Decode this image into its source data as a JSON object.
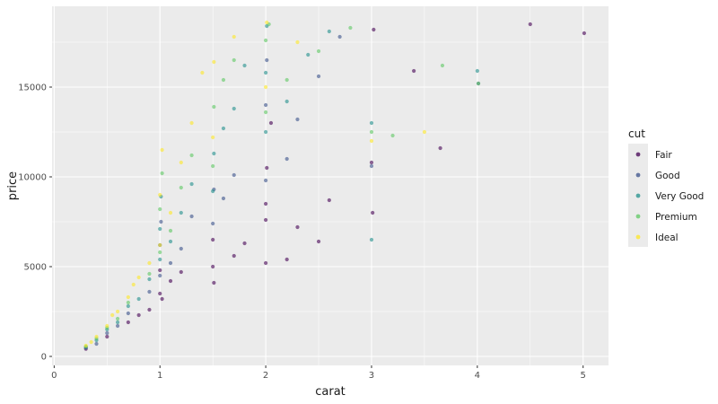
{
  "chart_data": {
    "type": "scatter",
    "title": "",
    "xlabel": "carat",
    "ylabel": "price",
    "xlim": [
      -0.02,
      5.24
    ],
    "ylim": [
      -500,
      19500
    ],
    "x_ticks": [
      0,
      1,
      2,
      3,
      4,
      5
    ],
    "x_tick_labels": [
      "0",
      "1",
      "2",
      "3",
      "4",
      "5"
    ],
    "y_ticks": [
      0,
      5000,
      10000,
      15000
    ],
    "y_tick_labels": [
      "0",
      "5000",
      "10000",
      "15000"
    ],
    "grid": true,
    "background": "#ebebeb",
    "grid_color": "#ffffff",
    "legend": {
      "title": "cut",
      "position": "right",
      "entries": [
        "Fair",
        "Good",
        "Very Good",
        "Premium",
        "Ideal"
      ]
    },
    "series": [
      {
        "name": "Fair",
        "color": "#440154",
        "points": [
          [
            0.3,
            420
          ],
          [
            0.5,
            1100
          ],
          [
            0.7,
            1900
          ],
          [
            0.8,
            2300
          ],
          [
            0.9,
            2600
          ],
          [
            1.0,
            3500
          ],
          [
            1.0,
            4800
          ],
          [
            1.02,
            3200
          ],
          [
            1.1,
            4200
          ],
          [
            1.2,
            4700
          ],
          [
            1.5,
            5000
          ],
          [
            1.5,
            6500
          ],
          [
            1.51,
            4100
          ],
          [
            1.7,
            5600
          ],
          [
            1.8,
            6300
          ],
          [
            2.0,
            5200
          ],
          [
            2.0,
            7600
          ],
          [
            2.0,
            8500
          ],
          [
            2.01,
            10500
          ],
          [
            2.05,
            13000
          ],
          [
            2.2,
            5400
          ],
          [
            2.3,
            7200
          ],
          [
            2.5,
            6400
          ],
          [
            2.6,
            8700
          ],
          [
            3.0,
            10800
          ],
          [
            3.01,
            8000
          ],
          [
            3.02,
            18200
          ],
          [
            3.4,
            15900
          ],
          [
            3.65,
            11600
          ],
          [
            4.5,
            18500
          ],
          [
            5.01,
            18000
          ]
        ]
      },
      {
        "name": "Good",
        "color": "#3b528b",
        "points": [
          [
            0.3,
            480
          ],
          [
            0.4,
            700
          ],
          [
            0.5,
            1300
          ],
          [
            0.6,
            1700
          ],
          [
            0.7,
            2400
          ],
          [
            0.9,
            3600
          ],
          [
            1.0,
            4500
          ],
          [
            1.0,
            6200
          ],
          [
            1.01,
            7500
          ],
          [
            1.1,
            5200
          ],
          [
            1.2,
            6000
          ],
          [
            1.3,
            7800
          ],
          [
            1.5,
            7400
          ],
          [
            1.51,
            9300
          ],
          [
            1.6,
            8800
          ],
          [
            1.7,
            10100
          ],
          [
            2.0,
            9800
          ],
          [
            2.0,
            14000
          ],
          [
            2.01,
            16500
          ],
          [
            2.2,
            11000
          ],
          [
            2.3,
            13200
          ],
          [
            2.5,
            15600
          ],
          [
            2.7,
            17800
          ],
          [
            3.0,
            10600
          ],
          [
            4.01,
            15200
          ]
        ]
      },
      {
        "name": "Very Good",
        "color": "#21908c",
        "points": [
          [
            0.3,
            520
          ],
          [
            0.4,
            900
          ],
          [
            0.5,
            1500
          ],
          [
            0.6,
            1900
          ],
          [
            0.7,
            2800
          ],
          [
            0.8,
            3200
          ],
          [
            0.9,
            4300
          ],
          [
            1.0,
            5400
          ],
          [
            1.0,
            7100
          ],
          [
            1.01,
            8900
          ],
          [
            1.1,
            6400
          ],
          [
            1.2,
            8000
          ],
          [
            1.3,
            9600
          ],
          [
            1.5,
            9200
          ],
          [
            1.51,
            11300
          ],
          [
            1.6,
            12700
          ],
          [
            1.7,
            13800
          ],
          [
            1.8,
            16200
          ],
          [
            2.0,
            12500
          ],
          [
            2.0,
            15800
          ],
          [
            2.01,
            18400
          ],
          [
            2.2,
            14200
          ],
          [
            2.4,
            16800
          ],
          [
            2.6,
            18100
          ],
          [
            3.0,
            6500
          ],
          [
            3.0,
            13000
          ],
          [
            4.0,
            15900
          ]
        ]
      },
      {
        "name": "Premium",
        "color": "#5dc863",
        "points": [
          [
            0.3,
            560
          ],
          [
            0.4,
            1000
          ],
          [
            0.5,
            1600
          ],
          [
            0.6,
            2100
          ],
          [
            0.7,
            3000
          ],
          [
            0.9,
            4600
          ],
          [
            1.0,
            5800
          ],
          [
            1.0,
            8200
          ],
          [
            1.02,
            10200
          ],
          [
            1.1,
            7000
          ],
          [
            1.2,
            9400
          ],
          [
            1.3,
            11200
          ],
          [
            1.5,
            10600
          ],
          [
            1.51,
            13900
          ],
          [
            1.6,
            15400
          ],
          [
            1.7,
            16500
          ],
          [
            2.0,
            13600
          ],
          [
            2.0,
            17600
          ],
          [
            2.03,
            18500
          ],
          [
            2.2,
            15400
          ],
          [
            2.5,
            17000
          ],
          [
            2.8,
            18300
          ],
          [
            3.0,
            12500
          ],
          [
            3.2,
            12300
          ],
          [
            3.67,
            16200
          ],
          [
            4.01,
            15200
          ]
        ]
      },
      {
        "name": "Ideal",
        "color": "#fde725",
        "points": [
          [
            0.3,
            600
          ],
          [
            0.35,
            800
          ],
          [
            0.4,
            1100
          ],
          [
            0.5,
            1700
          ],
          [
            0.55,
            2300
          ],
          [
            0.6,
            2500
          ],
          [
            0.7,
            3300
          ],
          [
            0.75,
            4000
          ],
          [
            0.8,
            4400
          ],
          [
            0.9,
            5200
          ],
          [
            1.0,
            6200
          ],
          [
            1.0,
            9000
          ],
          [
            1.02,
            11500
          ],
          [
            1.1,
            8000
          ],
          [
            1.2,
            10800
          ],
          [
            1.3,
            13000
          ],
          [
            1.4,
            15800
          ],
          [
            1.5,
            12200
          ],
          [
            1.51,
            16400
          ],
          [
            1.7,
            17800
          ],
          [
            2.0,
            15000
          ],
          [
            2.01,
            18600
          ],
          [
            2.3,
            17500
          ],
          [
            3.0,
            12000
          ],
          [
            3.5,
            12500
          ]
        ]
      }
    ]
  }
}
